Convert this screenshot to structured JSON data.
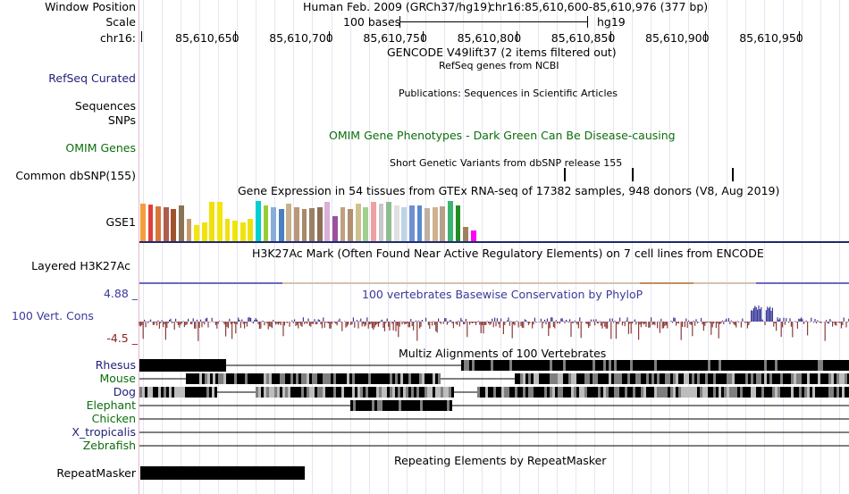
{
  "header": {
    "window_position_label": "Window Position",
    "scale_label": "Scale",
    "chrom_label": "chr16:",
    "assembly_text": "Human Feb. 2009 (GRCh37/hg19)",
    "position_text": "chr16:85,610,600-85,610,976 (377 bp)",
    "scale_bases": "100 bases",
    "scale_db": "hg19",
    "ruler_positions": [
      "85,610,650",
      "85,610,700",
      "85,610,750",
      "85,610,800",
      "85,610,850",
      "85,610,900",
      "85,610,950"
    ]
  },
  "tracks": {
    "gencode_title": "GENCODE V49lift37 (2 items filtered out)",
    "refseq_label": "RefSeq Curated",
    "refseq_title": "RefSeq genes from NCBI",
    "publications_title": "Publications: Sequences in Scientific Articles",
    "sequences_label": "Sequences",
    "snps_label": "SNPs",
    "omim_label": "OMIM Genes",
    "omim_title": "OMIM Gene Phenotypes - Dark Green Can Be Disease-causing",
    "dbsnp_title": "Short Genetic Variants from dbSNP release 155",
    "dbsnp_label": "Common dbSNP(155)",
    "gtex_title": "Gene Expression in 54 tissues from GTEx RNA-seq of 17382 samples, 948 donors (V8, Aug 2019)",
    "gtex_label": "GSE1",
    "h3k27ac_label": "Layered H3K27Ac",
    "h3k27ac_title": "H3K27Ac Mark (Often Found Near Active Regulatory Elements) on 7 cell lines from ENCODE",
    "cons_max": "4.88 _",
    "cons_min": "-4.5 _",
    "cons_label": "100 Vert. Cons",
    "cons_title": "100 vertebrates Basewise Conservation by PhyloP",
    "multiz_title": "Multiz Alignments of 100 Vertebrates",
    "species": [
      {
        "name": "Rhesus",
        "color": "#1f1f7a"
      },
      {
        "name": "Mouse",
        "color": "#0b6e0b"
      },
      {
        "name": "Dog",
        "color": "#1f1f7a"
      },
      {
        "name": "Elephant",
        "color": "#0b6e0b"
      },
      {
        "name": "Chicken",
        "color": "#0b6e0b"
      },
      {
        "name": "X_tropicalis",
        "color": "#1f1f7a"
      },
      {
        "name": "Zebrafish",
        "color": "#0b6e0b"
      }
    ],
    "repeat_title": "Repeating Elements by RepeatMasker",
    "repeat_label": "RepeatMasker"
  },
  "colors": {
    "label_navy": "#1f1f7a",
    "label_green": "#0b6e0b",
    "conservation_positive": "#3a3a9a",
    "conservation_negative": "#8a3a3a",
    "gtex_bar_colors": [
      "#f2a03c",
      "#e0403a",
      "#d9763a",
      "#b05a50",
      "#a0522d",
      "#8b7355",
      "#c49a6c",
      "#f5e50a",
      "#f2e20a",
      "#f0e00a",
      "#f5e60a",
      "#f0df12",
      "#efe40c",
      "#f1e30d",
      "#eee10a",
      "#00ced1",
      "#9acd32",
      "#87aed6",
      "#4a7fc1",
      "#c8b08a",
      "#b89878",
      "#a88868",
      "#998066",
      "#8d6e55",
      "#d8b0d8",
      "#9c4fa0",
      "#c0a080",
      "#b09070",
      "#d0c090",
      "#a0d090",
      "#f0a0a0",
      "#c8c8c8",
      "#8fbc8f",
      "#e0e0e0",
      "#bcd4e6",
      "#7090d0",
      "#5a8ad0",
      "#c0b0a0",
      "#d0b090",
      "#b8a088",
      "#3cb371",
      "#228b22",
      "#a08060",
      "#ff00ff"
    ],
    "gtex_bar_levels": [
      0.92,
      0.9,
      0.85,
      0.82,
      0.78,
      0.88,
      0.55,
      0.4,
      0.45,
      0.95,
      0.96,
      0.55,
      0.5,
      0.45,
      0.55,
      0.98,
      0.88,
      0.82,
      0.78,
      0.92,
      0.82,
      0.78,
      0.8,
      0.82,
      0.95,
      0.6,
      0.82,
      0.78,
      0.92,
      0.82,
      0.96,
      0.92,
      0.96,
      0.88,
      0.82,
      0.88,
      0.88,
      0.8,
      0.82,
      0.85,
      0.98,
      0.88,
      0.35,
      0.25
    ]
  }
}
